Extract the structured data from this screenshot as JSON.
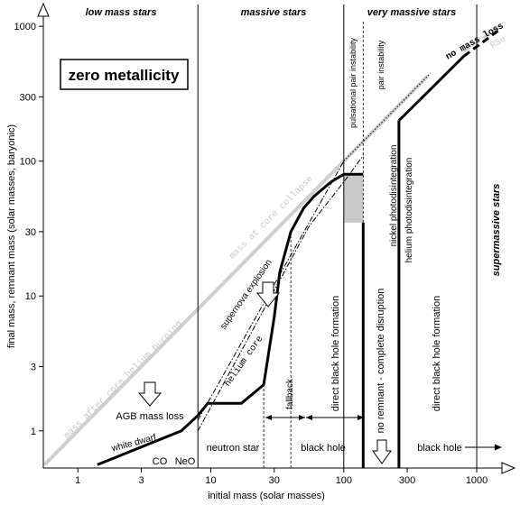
{
  "regions": {
    "low_mass": "low mass stars",
    "massive": "massive stars",
    "very_massive": "very massive stars",
    "supermassive": "supermassive stars"
  },
  "box_title": "zero metallicity",
  "axes": {
    "xlabel": "initial mass (solar masses)",
    "ylabel": "final mass, remnant mass (solar masses, baryonic)",
    "x_ticks": [
      {
        "label": "1",
        "v": 1
      },
      {
        "label": "3",
        "v": 3
      },
      {
        "label": "10",
        "v": 10
      },
      {
        "label": "30",
        "v": 30
      },
      {
        "label": "100",
        "v": 100
      },
      {
        "label": "300",
        "v": 300
      },
      {
        "label": "1000",
        "v": 1000
      }
    ],
    "y_ticks": [
      {
        "label": "1",
        "v": 1
      },
      {
        "label": "3",
        "v": 3
      },
      {
        "label": "10",
        "v": 10
      },
      {
        "label": "30",
        "v": 30
      },
      {
        "label": "100",
        "v": 100
      },
      {
        "label": "300",
        "v": 300
      },
      {
        "label": "1000",
        "v": 1000
      }
    ],
    "xlim": [
      0.55,
      1700
    ],
    "ylim": [
      0.53,
      1450
    ],
    "scale": "log"
  },
  "curves": {
    "core_collapse": "mass at core collapse",
    "core_helium": "mass after core helium burning",
    "no_mass_loss": "no mass loss",
    "rse": "RSe",
    "supernova": "supernova explosion",
    "helium_core": "helium core"
  },
  "labels": {
    "ppi": "pulsational pair instability",
    "pi": "pair instability",
    "nickel": "nickel photodisintegration",
    "helium_photo": "helium photodisintegration",
    "agb": "AGB mass loss",
    "white_dwarf": "white dwarf",
    "co": "CO",
    "neo": "NeO",
    "neutron_star": "neutron star",
    "fallback": "fallback",
    "dbh1": "direct black hole formation",
    "dbh2": "direct black hole formation",
    "black_hole_1": "black hole",
    "black_hole_2": "black hole",
    "no_remnant": "no remnant  -  complete disruption"
  },
  "chart_data": {
    "type": "line",
    "x_scale": "log",
    "y_scale": "log",
    "series": [
      {
        "name": "mass after core helium burning",
        "points": [
          [
            0.56,
            0.56
          ],
          [
            1000,
            1000
          ]
        ]
      },
      {
        "name": "mass at core collapse",
        "points": [
          [
            100,
            100
          ],
          [
            430,
            430
          ]
        ]
      },
      {
        "name": "no mass loss",
        "points": [
          [
            450,
            450
          ],
          [
            1000,
            1000
          ]
        ]
      },
      {
        "name": "remnant mass",
        "points": [
          [
            1.4,
            0.56
          ],
          [
            6,
            1.0
          ],
          [
            8,
            1.3
          ],
          [
            9.5,
            1.6
          ],
          [
            17,
            1.6
          ],
          [
            25,
            2.2
          ],
          [
            30,
            7
          ],
          [
            33,
            15
          ],
          [
            40,
            30
          ],
          [
            50,
            45
          ],
          [
            60,
            55
          ],
          [
            80,
            70
          ],
          [
            100,
            80
          ],
          [
            140,
            80
          ],
          [
            140,
            35
          ],
          [
            260,
            200
          ],
          [
            800,
            600
          ],
          [
            1000,
            700
          ],
          [
            1500,
            950
          ]
        ]
      },
      {
        "name": "supernova explosion",
        "points": [
          [
            8,
            1.2
          ],
          [
            100,
            100
          ]
        ]
      },
      {
        "name": "helium core",
        "points": [
          [
            8,
            1.0
          ],
          [
            55,
            33
          ],
          [
            100,
            70
          ],
          [
            140,
            110
          ]
        ]
      }
    ]
  }
}
